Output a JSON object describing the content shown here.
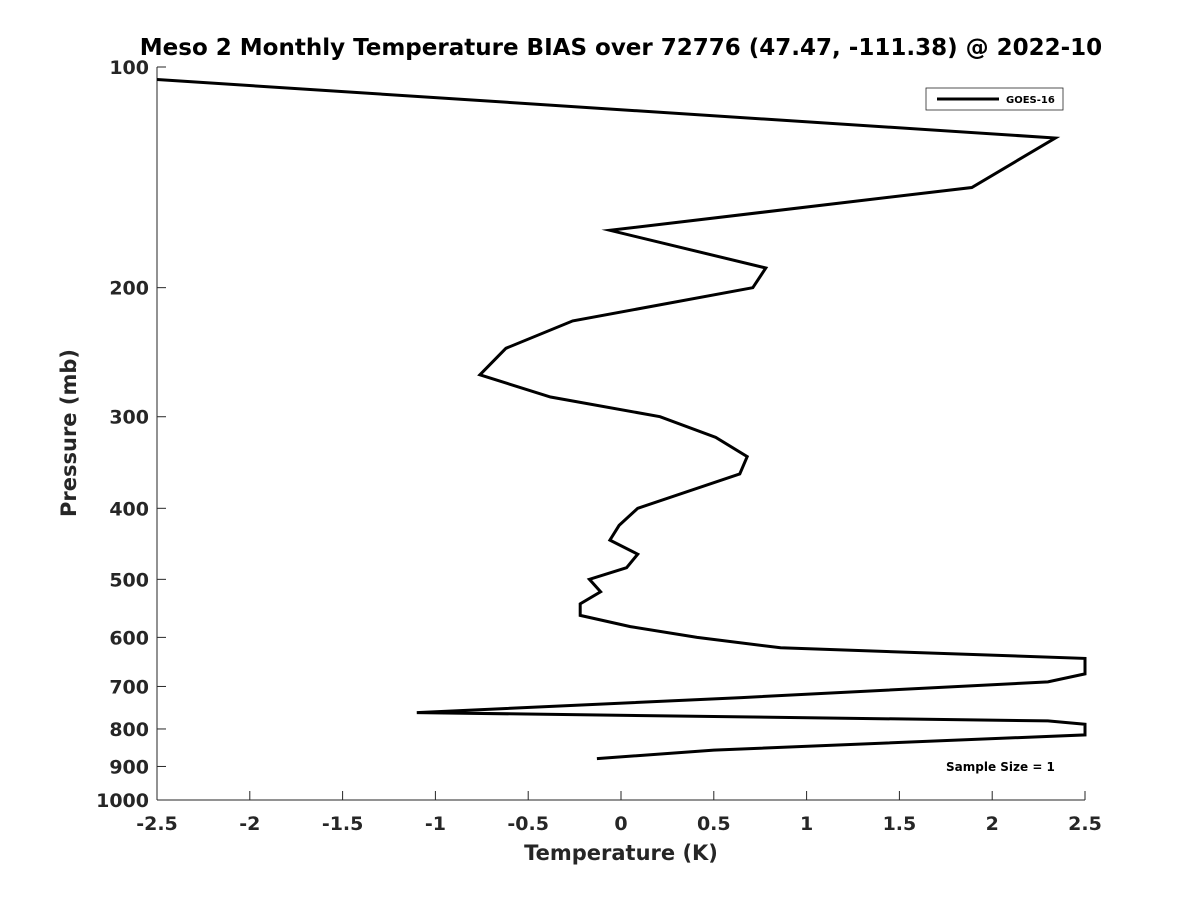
{
  "chart_data": {
    "type": "line",
    "title": "Meso 2 Monthly Temperature BIAS over 72776 (47.47, -111.38) @ 2022-10",
    "xlabel": "Temperature (K)",
    "ylabel": "Pressure (mb)",
    "xlim": [
      -2.5,
      2.5
    ],
    "ylim": [
      100,
      1000
    ],
    "y_scale": "log",
    "y_reversed": true,
    "x_ticks": [
      -2.5,
      -2,
      -1.5,
      -1,
      -0.5,
      0,
      0.5,
      1,
      1.5,
      2,
      2.5
    ],
    "x_tick_labels": [
      "-2.5",
      "-2",
      "-1.5",
      "-1",
      "-0.5",
      "0",
      "0.5",
      "1",
      "1.5",
      "2",
      "2.5"
    ],
    "y_ticks": [
      100,
      200,
      300,
      400,
      500,
      600,
      700,
      800,
      900,
      1000
    ],
    "y_tick_labels": [
      "100",
      "200",
      "300",
      "400",
      "500",
      "600",
      "700",
      "800",
      "900",
      "1000"
    ],
    "grid": false,
    "legend_position": "top-right",
    "series": [
      {
        "name": "GOES-16",
        "color": "#000000",
        "points": [
          {
            "x": -2.5,
            "y": 104
          },
          {
            "x": 2.34,
            "y": 125
          },
          {
            "x": 1.89,
            "y": 146
          },
          {
            "x": -0.06,
            "y": 167
          },
          {
            "x": 0.78,
            "y": 188
          },
          {
            "x": 0.71,
            "y": 200
          },
          {
            "x": -0.26,
            "y": 222
          },
          {
            "x": -0.62,
            "y": 242
          },
          {
            "x": -0.76,
            "y": 263
          },
          {
            "x": -0.38,
            "y": 282
          },
          {
            "x": 0.21,
            "y": 300
          },
          {
            "x": 0.51,
            "y": 320
          },
          {
            "x": 0.68,
            "y": 340
          },
          {
            "x": 0.64,
            "y": 359
          },
          {
            "x": 0.09,
            "y": 400
          },
          {
            "x": -0.01,
            "y": 422
          },
          {
            "x": -0.06,
            "y": 442
          },
          {
            "x": 0.09,
            "y": 462
          },
          {
            "x": 0.03,
            "y": 482
          },
          {
            "x": -0.17,
            "y": 500
          },
          {
            "x": -0.11,
            "y": 520
          },
          {
            "x": -0.22,
            "y": 540
          },
          {
            "x": -0.22,
            "y": 560
          },
          {
            "x": 0.05,
            "y": 580
          },
          {
            "x": 0.41,
            "y": 600
          },
          {
            "x": 0.86,
            "y": 620
          },
          {
            "x": 2.5,
            "y": 641
          },
          {
            "x": 2.5,
            "y": 673
          },
          {
            "x": 2.3,
            "y": 690
          },
          {
            "x": 0.65,
            "y": 725
          },
          {
            "x": -1.1,
            "y": 760
          },
          {
            "x": 2.3,
            "y": 780
          },
          {
            "x": 2.5,
            "y": 788
          },
          {
            "x": 2.5,
            "y": 815
          },
          {
            "x": 0.5,
            "y": 855
          },
          {
            "x": -0.13,
            "y": 878
          }
        ]
      }
    ],
    "annotation": "Sample Size = 1"
  }
}
